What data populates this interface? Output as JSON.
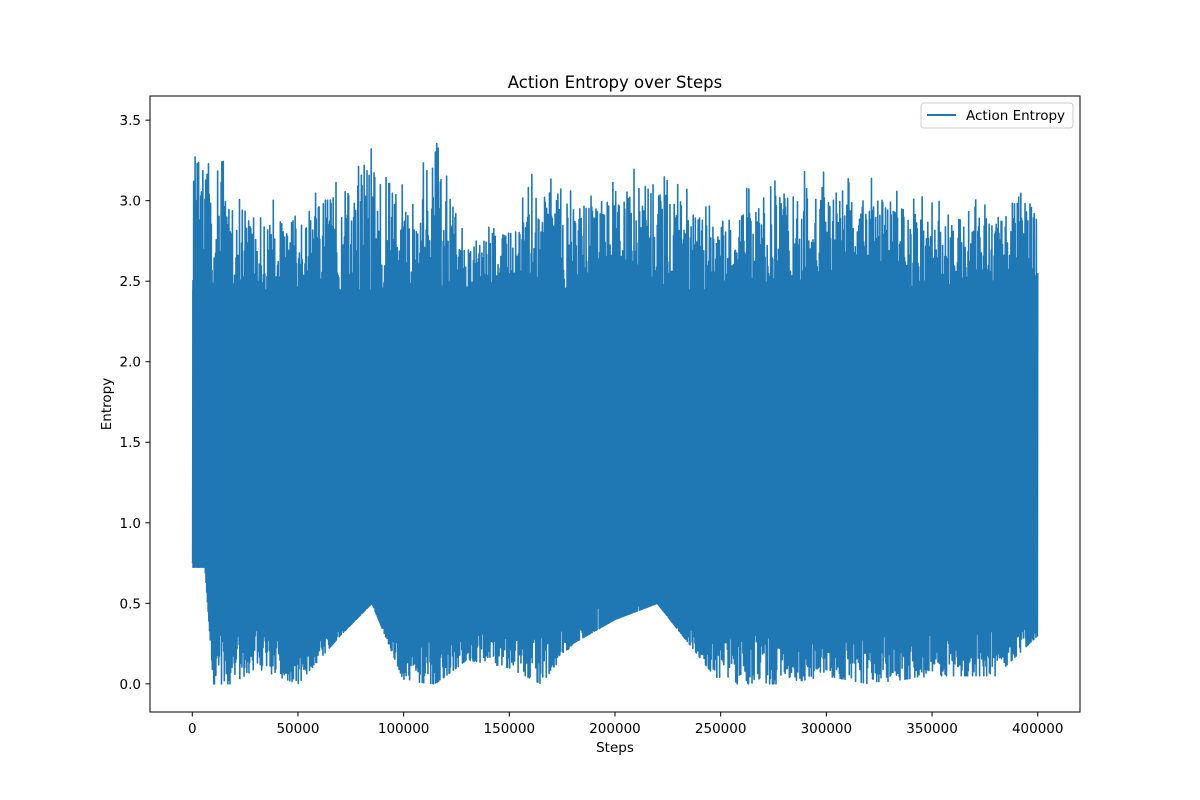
{
  "chart_data": {
    "type": "line",
    "title": "Action Entropy over Steps",
    "xlabel": "Steps",
    "ylabel": "Entropy",
    "xlim": [
      -20000,
      420000
    ],
    "ylim": [
      -0.175,
      3.65
    ],
    "xticks": [
      0,
      50000,
      100000,
      150000,
      200000,
      250000,
      300000,
      350000,
      400000
    ],
    "xtick_labels": [
      "0",
      "50000",
      "100000",
      "150000",
      "200000",
      "250000",
      "300000",
      "350000",
      "400000"
    ],
    "yticks": [
      0.0,
      0.5,
      1.0,
      1.5,
      2.0,
      2.5,
      3.0,
      3.5
    ],
    "ytick_labels": [
      "0.0",
      "0.5",
      "1.0",
      "1.5",
      "2.0",
      "2.5",
      "3.0",
      "3.5"
    ],
    "grid": false,
    "legend_position": "top-right",
    "series": [
      {
        "name": "Action Entropy",
        "color": "#1f77b4",
        "x_range": [
          0,
          400000
        ],
        "envelope_steps": [
          0,
          5000,
          10000,
          20000,
          30000,
          50000,
          70000,
          85000,
          100000,
          115000,
          130000,
          150000,
          165000,
          180000,
          200000,
          220000,
          250000,
          280000,
          300000,
          320000,
          350000,
          380000,
          400000
        ],
        "envelope_min": [
          0.75,
          0.9,
          0.0,
          0.0,
          0.1,
          0.0,
          0.3,
          0.5,
          0.02,
          0.0,
          0.15,
          0.1,
          0.0,
          0.25,
          0.4,
          0.5,
          0.0,
          0.0,
          0.05,
          0.0,
          0.05,
          0.05,
          0.3
        ],
        "envelope_max": [
          3.48,
          3.4,
          3.35,
          3.3,
          3.0,
          3.05,
          3.2,
          3.35,
          3.1,
          3.4,
          2.9,
          2.95,
          3.28,
          3.1,
          3.2,
          3.2,
          3.0,
          3.2,
          3.2,
          3.15,
          3.05,
          3.05,
          3.18
        ],
        "end_value": 2.55
      }
    ]
  }
}
